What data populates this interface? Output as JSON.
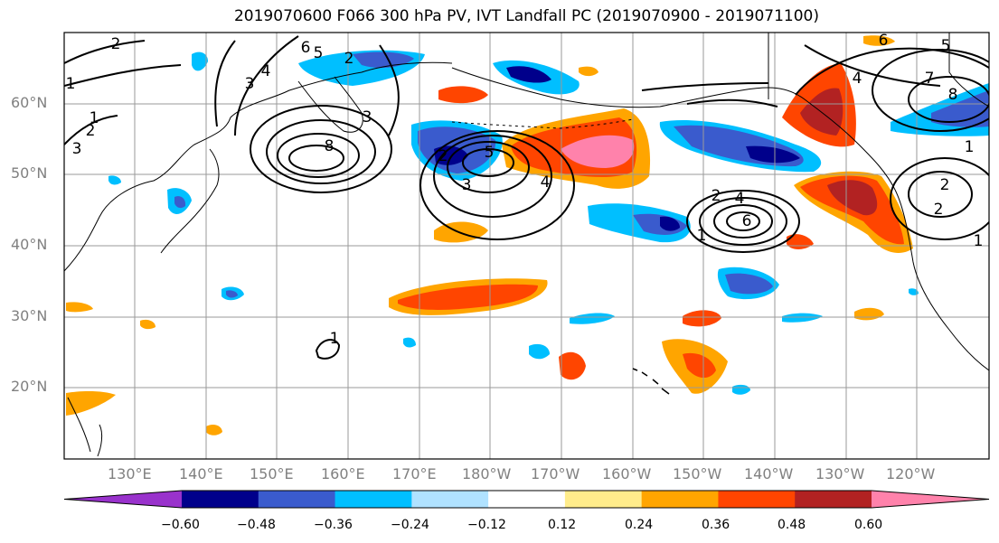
{
  "title": "2019070600 F066 300 hPa PV, IVT Landfall PC (2019070900 - 2019071100)",
  "map": {
    "lat_labels": [
      "60°N",
      "50°N",
      "40°N",
      "30°N",
      "20°N"
    ],
    "lon_labels": [
      "130°E",
      "140°E",
      "150°E",
      "160°E",
      "170°E",
      "180°W",
      "170°W",
      "160°W",
      "150°W",
      "140°W",
      "130°W",
      "120°W"
    ],
    "contour_labels": [
      "2",
      "1",
      "2",
      "3",
      "6",
      "5",
      "4",
      "3",
      "2",
      "8",
      "3",
      "1",
      "5",
      "4",
      "3",
      "2",
      "6",
      "4",
      "2",
      "1",
      "2",
      "6",
      "5",
      "4",
      "7",
      "8",
      "1",
      "2",
      "1",
      "1"
    ]
  },
  "colorbar": {
    "colors": [
      "#9932cc",
      "#00008b",
      "#3a5bcd",
      "#00bfff",
      "#b0e2ff",
      "#ffffff",
      "#ffec8b",
      "#ffa500",
      "#ff4500",
      "#b22222",
      "#ff82ab"
    ],
    "tick_labels": [
      "−0.60",
      "−0.48",
      "−0.36",
      "−0.24",
      "−0.12",
      "0.12",
      "0.24",
      "0.36",
      "0.48",
      "0.60"
    ]
  }
}
